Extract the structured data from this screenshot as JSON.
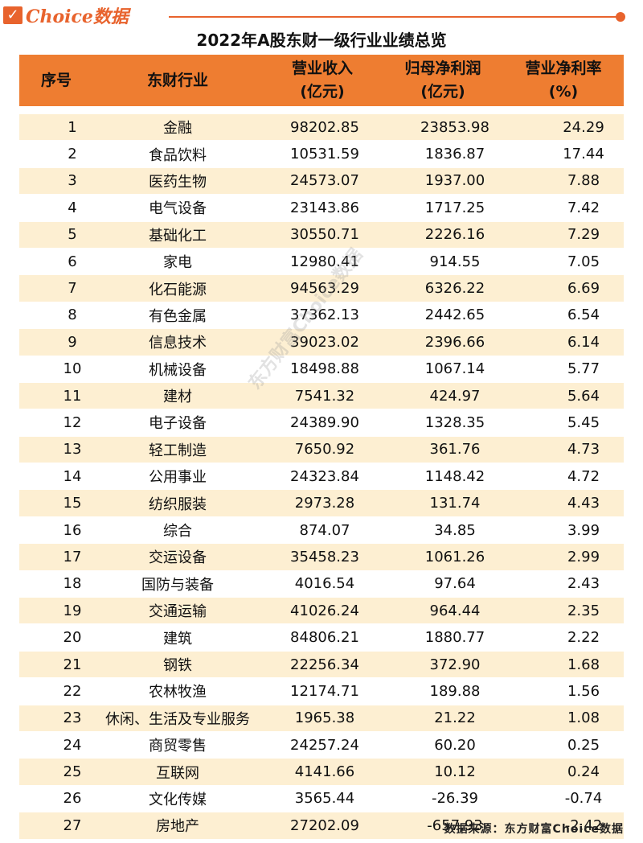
{
  "brand": {
    "check": "✓",
    "name": "Choice数据"
  },
  "title": "2022年A股东财一级行业业绩总览",
  "columns": {
    "idx": "序号",
    "industry": "东财行业",
    "revenue_1": "营业收入",
    "revenue_2": "(亿元)",
    "profit_1": "归母净利润",
    "profit_2": "(亿元)",
    "rate_1": "营业净利率",
    "rate_2": "(%)"
  },
  "rows": [
    {
      "idx": "1",
      "industry": "金融",
      "revenue": "98202.85",
      "profit": "23853.98",
      "rate": "24.29"
    },
    {
      "idx": "2",
      "industry": "食品饮料",
      "revenue": "10531.59",
      "profit": "1836.87",
      "rate": "17.44"
    },
    {
      "idx": "3",
      "industry": "医药生物",
      "revenue": "24573.07",
      "profit": "1937.00",
      "rate": "7.88"
    },
    {
      "idx": "4",
      "industry": "电气设备",
      "revenue": "23143.86",
      "profit": "1717.25",
      "rate": "7.42"
    },
    {
      "idx": "5",
      "industry": "基础化工",
      "revenue": "30550.71",
      "profit": "2226.16",
      "rate": "7.29"
    },
    {
      "idx": "6",
      "industry": "家电",
      "revenue": "12980.41",
      "profit": "914.55",
      "rate": "7.05"
    },
    {
      "idx": "7",
      "industry": "化石能源",
      "revenue": "94563.29",
      "profit": "6326.22",
      "rate": "6.69"
    },
    {
      "idx": "8",
      "industry": "有色金属",
      "revenue": "37362.13",
      "profit": "2442.65",
      "rate": "6.54"
    },
    {
      "idx": "9",
      "industry": "信息技术",
      "revenue": "39023.02",
      "profit": "2396.66",
      "rate": "6.14"
    },
    {
      "idx": "10",
      "industry": "机械设备",
      "revenue": "18498.88",
      "profit": "1067.14",
      "rate": "5.77"
    },
    {
      "idx": "11",
      "industry": "建材",
      "revenue": "7541.32",
      "profit": "424.97",
      "rate": "5.64"
    },
    {
      "idx": "12",
      "industry": "电子设备",
      "revenue": "24389.90",
      "profit": "1328.35",
      "rate": "5.45"
    },
    {
      "idx": "13",
      "industry": "轻工制造",
      "revenue": "7650.92",
      "profit": "361.76",
      "rate": "4.73"
    },
    {
      "idx": "14",
      "industry": "公用事业",
      "revenue": "24323.84",
      "profit": "1148.42",
      "rate": "4.72"
    },
    {
      "idx": "15",
      "industry": "纺织服装",
      "revenue": "2973.28",
      "profit": "131.74",
      "rate": "4.43"
    },
    {
      "idx": "16",
      "industry": "综合",
      "revenue": "874.07",
      "profit": "34.85",
      "rate": "3.99"
    },
    {
      "idx": "17",
      "industry": "交运设备",
      "revenue": "35458.23",
      "profit": "1061.26",
      "rate": "2.99"
    },
    {
      "idx": "18",
      "industry": "国防与装备",
      "revenue": "4016.54",
      "profit": "97.64",
      "rate": "2.43"
    },
    {
      "idx": "19",
      "industry": "交通运输",
      "revenue": "41026.24",
      "profit": "964.44",
      "rate": "2.35"
    },
    {
      "idx": "20",
      "industry": "建筑",
      "revenue": "84806.21",
      "profit": "1880.77",
      "rate": "2.22"
    },
    {
      "idx": "21",
      "industry": "钢铁",
      "revenue": "22256.34",
      "profit": "372.90",
      "rate": "1.68"
    },
    {
      "idx": "22",
      "industry": "农林牧渔",
      "revenue": "12174.71",
      "profit": "189.88",
      "rate": "1.56"
    },
    {
      "idx": "23",
      "industry": "休闲、生活及专业服务",
      "revenue": "1965.38",
      "profit": "21.22",
      "rate": "1.08"
    },
    {
      "idx": "24",
      "industry": "商贸零售",
      "revenue": "24257.24",
      "profit": "60.20",
      "rate": "0.25"
    },
    {
      "idx": "25",
      "industry": "互联网",
      "revenue": "4141.66",
      "profit": "10.12",
      "rate": "0.24"
    },
    {
      "idx": "26",
      "industry": "文化传媒",
      "revenue": "3565.44",
      "profit": "-26.39",
      "rate": "-0.74"
    },
    {
      "idx": "27",
      "industry": "房地产",
      "revenue": "27202.09",
      "profit": "-657.93",
      "rate": "-2.42"
    }
  ],
  "watermark": "东方财富Choice数据",
  "source": "数据来源：东方财富Choice数据",
  "colors": {
    "accent": "#ee7d31",
    "stripe": "#fdefd2",
    "brand": "#e8632d"
  }
}
